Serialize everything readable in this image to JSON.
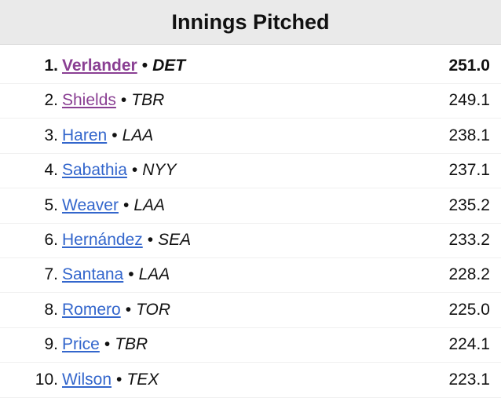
{
  "title": "Innings Pitched",
  "separator": "•",
  "rows": [
    {
      "rank": "1.",
      "name": "Verlander",
      "team": "DET",
      "value": "251.0",
      "visited": true,
      "leader": true
    },
    {
      "rank": "2.",
      "name": "Shields",
      "team": "TBR",
      "value": "249.1",
      "visited": true,
      "leader": false
    },
    {
      "rank": "3.",
      "name": "Haren",
      "team": "LAA",
      "value": "238.1",
      "visited": false,
      "leader": false
    },
    {
      "rank": "4.",
      "name": "Sabathia",
      "team": "NYY",
      "value": "237.1",
      "visited": false,
      "leader": false
    },
    {
      "rank": "5.",
      "name": "Weaver",
      "team": "LAA",
      "value": "235.2",
      "visited": false,
      "leader": false
    },
    {
      "rank": "6.",
      "name": "Hernández",
      "team": "SEA",
      "value": "233.2",
      "visited": false,
      "leader": false
    },
    {
      "rank": "7.",
      "name": "Santana",
      "team": "LAA",
      "value": "228.2",
      "visited": false,
      "leader": false
    },
    {
      "rank": "8.",
      "name": "Romero",
      "team": "TOR",
      "value": "225.0",
      "visited": false,
      "leader": false
    },
    {
      "rank": "9.",
      "name": "Price",
      "team": "TBR",
      "value": "224.1",
      "visited": false,
      "leader": false
    },
    {
      "rank": "10.",
      "name": "Wilson",
      "team": "TEX",
      "value": "223.1",
      "visited": false,
      "leader": false
    }
  ]
}
